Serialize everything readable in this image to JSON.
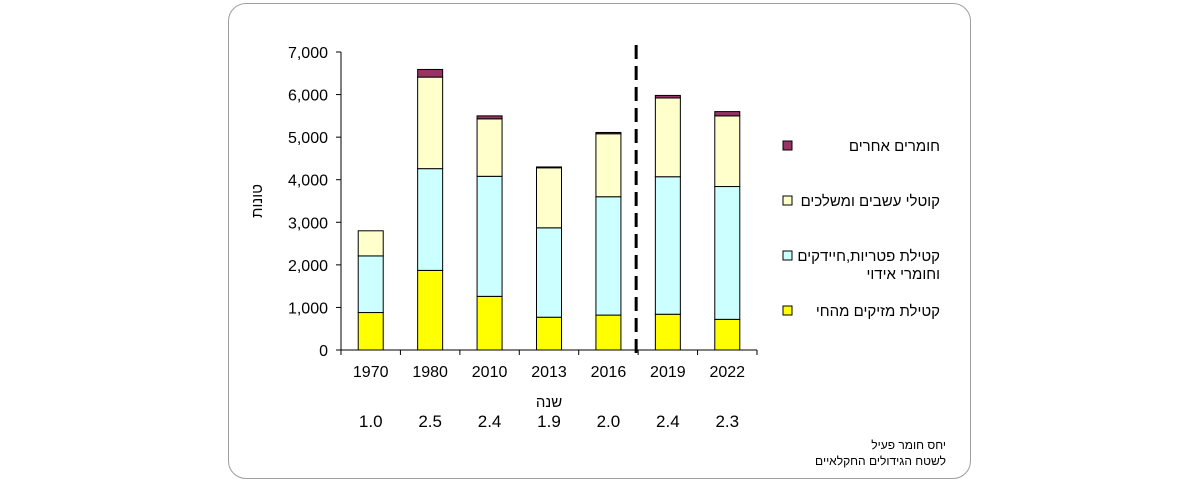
{
  "chart_data": {
    "type": "bar",
    "stacked": true,
    "categories": [
      "1970",
      "1980",
      "2010",
      "2013",
      "2016",
      "2019",
      "2022"
    ],
    "xlabel": "שנה",
    "ylabel": "טונות",
    "ylim": [
      0,
      7000
    ],
    "yticks": [
      "0",
      "1,000",
      "2,000",
      "3,000",
      "4,000",
      "5,000",
      "6,000",
      "7,000"
    ],
    "series": [
      {
        "name": "קטילת מזיקים מהחי",
        "color": "#ffff00",
        "values": [
          880,
          1870,
          1260,
          770,
          820,
          840,
          720
        ]
      },
      {
        "name": "קטילת פטריות,חיידקים וחומרי אידוי",
        "name_lines": [
          "קטילת פטריות,חיידקים",
          "וחומרי אידוי"
        ],
        "color": "#ccffff",
        "values": [
          1330,
          2390,
          2820,
          2100,
          2780,
          3230,
          3120
        ]
      },
      {
        "name": "קוטלי עשבים ומשלכים",
        "color": "#ffffcc",
        "values": [
          590,
          2150,
          1350,
          1410,
          1480,
          1850,
          1660
        ]
      },
      {
        "name": "חומרים אחרים",
        "color": "#993366",
        "values": [
          0,
          180,
          70,
          20,
          30,
          60,
          100
        ]
      }
    ],
    "ratio_values": [
      "1.0",
      "2.5",
      "2.4",
      "1.9",
      "2.0",
      "2.4",
      "2.3"
    ],
    "ratio_label_lines": [
      "יחס חומר פעיל",
      "לשטח הגידולים החקלאיים"
    ],
    "divider_between": [
      "2016",
      "2019"
    ],
    "legend_position": "right",
    "grid": false
  }
}
